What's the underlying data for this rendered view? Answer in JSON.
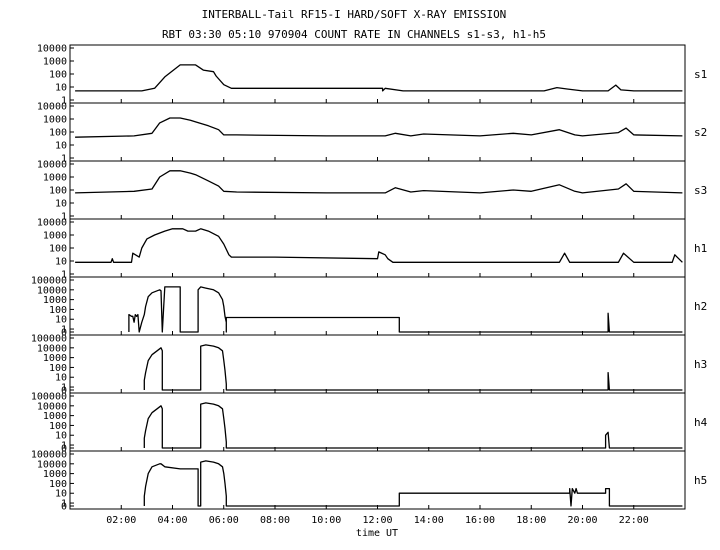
{
  "chart_data": {
    "type": "line",
    "title": "INTERBALL-Tail RF15-I HARD/SOFT X-RAY EMISSION",
    "subtitle": "RBT 03:30 05:10 970904  COUNT RATE IN CHANNELS s1-s3, h1-h5",
    "xlabel": "time UT",
    "x_range_hours": [
      0.0,
      24.0
    ],
    "x_ticks": [
      "02:00",
      "04:00",
      "06:00",
      "08:00",
      "10:00",
      "12:00",
      "14:00",
      "16:00",
      "18:00",
      "20:00",
      "22:00"
    ],
    "y_scale": "log",
    "grid": false,
    "panels": [
      {
        "name": "s1",
        "y_ticks": [
          "10000",
          "1000",
          "100",
          "10",
          "1"
        ],
        "ylim": [
          1,
          10000
        ],
        "x": [
          0.2,
          2.0,
          2.8,
          3.3,
          3.7,
          4.3,
          4.6,
          4.9,
          5.2,
          5.6,
          5.7,
          6.0,
          6.3,
          8.0,
          12.2,
          12.2,
          12.3,
          13.0,
          16.0,
          18.5,
          19.0,
          19.4,
          20.0,
          21.0,
          21.3,
          21.5,
          22.0,
          23.9
        ],
        "y": [
          5,
          5,
          5,
          8,
          60,
          500,
          500,
          500,
          200,
          150,
          70,
          15,
          8,
          8,
          8,
          5,
          8,
          5,
          5,
          5,
          9,
          7,
          5,
          5,
          14,
          6,
          5,
          5
        ]
      },
      {
        "name": "s2",
        "y_ticks": [
          "10000",
          "1000",
          "100",
          "10",
          "1"
        ],
        "ylim": [
          1,
          10000
        ],
        "x": [
          0.2,
          2.5,
          3.2,
          3.5,
          3.9,
          4.3,
          4.7,
          4.9,
          5.4,
          5.8,
          6.0,
          6.5,
          10.0,
          12.3,
          12.7,
          13.3,
          13.8,
          16.0,
          17.3,
          18.0,
          19.1,
          19.7,
          20.0,
          21.4,
          21.7,
          22.0,
          23.9
        ],
        "y": [
          40,
          50,
          80,
          500,
          1200,
          1200,
          800,
          600,
          300,
          150,
          60,
          60,
          50,
          50,
          80,
          50,
          70,
          50,
          80,
          60,
          150,
          60,
          50,
          90,
          200,
          60,
          50
        ]
      },
      {
        "name": "s3",
        "y_ticks": [
          "10000",
          "1000",
          "100",
          "10",
          "1"
        ],
        "ylim": [
          1,
          10000
        ],
        "x": [
          0.2,
          2.5,
          3.2,
          3.5,
          3.9,
          4.3,
          4.7,
          4.9,
          5.4,
          5.8,
          6.0,
          6.5,
          10.0,
          12.3,
          12.7,
          13.3,
          13.8,
          16.0,
          17.3,
          18.0,
          19.1,
          19.7,
          20.0,
          21.4,
          21.7,
          22.0,
          23.9
        ],
        "y": [
          60,
          80,
          120,
          1000,
          3000,
          3000,
          2000,
          1500,
          500,
          200,
          80,
          70,
          60,
          60,
          150,
          70,
          90,
          60,
          100,
          80,
          250,
          80,
          60,
          120,
          300,
          80,
          60
        ]
      },
      {
        "name": "h1",
        "y_ticks": [
          "10000",
          "1000",
          "100",
          "10",
          "1"
        ],
        "ylim": [
          1,
          10000
        ],
        "x": [
          0.2,
          1.6,
          1.65,
          1.7,
          1.8,
          2.0,
          2.2,
          2.4,
          2.45,
          2.7,
          2.8,
          3.0,
          3.3,
          3.7,
          4.0,
          4.4,
          4.6,
          4.9,
          5.1,
          5.4,
          5.8,
          6.0,
          6.2,
          6.3,
          8.0,
          12.0,
          12.05,
          12.3,
          12.4,
          12.6,
          12.8,
          14.0,
          19.1,
          19.3,
          19.5,
          21.0,
          21.4,
          21.6,
          22.0,
          23.4,
          23.5,
          23.6,
          23.9
        ],
        "y": [
          8,
          8,
          15,
          8,
          8,
          8,
          8,
          8,
          40,
          20,
          100,
          500,
          1000,
          2000,
          3000,
          3000,
          2000,
          2000,
          3000,
          2000,
          800,
          200,
          30,
          20,
          20,
          15,
          50,
          30,
          15,
          8,
          8,
          8,
          8,
          40,
          8,
          8,
          8,
          40,
          8,
          8,
          8,
          30,
          8
        ]
      },
      {
        "name": "h2",
        "y_ticks": [
          "100000",
          "10000",
          "1000",
          "100",
          "10",
          "1",
          "0"
        ],
        "ylim": [
          0.5,
          100000
        ],
        "x": [
          2.3,
          2.3,
          2.4,
          2.45,
          2.5,
          2.55,
          2.6,
          2.65,
          2.7,
          2.8,
          2.9,
          2.95,
          3.05,
          3.2,
          3.4,
          3.5,
          3.55,
          3.6,
          3.6,
          3.7,
          4.2,
          4.3,
          4.3,
          4.3,
          5.0,
          5.0,
          5.1,
          5.3,
          5.6,
          5.8,
          5.95,
          6.0,
          6.05,
          6.1,
          6.1,
          6.1,
          12.85,
          12.85,
          12.85,
          21.0,
          21.0,
          21.05,
          23.9
        ],
        "y": [
          0.5,
          30,
          20,
          20,
          5,
          30,
          20,
          30,
          0.5,
          5,
          30,
          200,
          2000,
          5000,
          8000,
          10000,
          8000,
          0.5,
          0.5,
          20000,
          20000,
          20000,
          20000,
          0.5,
          0.5,
          10000,
          20000,
          15000,
          10000,
          5000,
          1000,
          200,
          20,
          5,
          0.5,
          15,
          15,
          0.5,
          0.5,
          0.5,
          40,
          0.5,
          0.5
        ]
      },
      {
        "name": "h3",
        "y_ticks": [
          "100000",
          "10000",
          "1000",
          "100",
          "10",
          "1",
          "0"
        ],
        "ylim": [
          0.5,
          100000
        ],
        "x": [
          2.9,
          2.9,
          2.95,
          3.05,
          3.2,
          3.4,
          3.5,
          3.55,
          3.6,
          3.6,
          3.65,
          3.65,
          5.1,
          5.1,
          5.3,
          5.6,
          5.8,
          5.95,
          6.0,
          6.05,
          6.1,
          6.1,
          21.0,
          21.0,
          21.05,
          23.9
        ],
        "y": [
          0.5,
          5,
          30,
          500,
          2000,
          5000,
          8000,
          10000,
          5000,
          0.5,
          0.5,
          0.5,
          0.5,
          15000,
          20000,
          15000,
          10000,
          5000,
          500,
          50,
          2,
          0.5,
          0.5,
          30,
          0.5,
          0.5
        ]
      },
      {
        "name": "h4",
        "y_ticks": [
          "100000",
          "10000",
          "1000",
          "100",
          "10",
          "1",
          "0"
        ],
        "ylim": [
          0.5,
          100000
        ],
        "x": [
          2.9,
          2.9,
          2.95,
          3.05,
          3.2,
          3.4,
          3.5,
          3.55,
          3.6,
          3.6,
          3.65,
          3.65,
          5.1,
          5.1,
          5.3,
          5.6,
          5.8,
          5.95,
          6.0,
          6.05,
          6.1,
          6.1,
          20.9,
          20.9,
          21.0,
          21.05,
          23.9
        ],
        "y": [
          0.5,
          5,
          30,
          500,
          2000,
          5000,
          8000,
          10000,
          5000,
          0.5,
          0.5,
          0.5,
          0.5,
          15000,
          20000,
          15000,
          10000,
          5000,
          500,
          50,
          2,
          0.5,
          0.5,
          10,
          20,
          0.5,
          0.5
        ]
      },
      {
        "name": "h5",
        "y_ticks": [
          "100000",
          "10000",
          "1000",
          "100",
          "10",
          "1",
          "0"
        ],
        "ylim": [
          0.5,
          100000
        ],
        "x": [
          2.9,
          2.9,
          2.95,
          3.05,
          3.2,
          3.4,
          3.5,
          3.55,
          3.6,
          3.7,
          4.3,
          4.35,
          5.0,
          5.0,
          5.1,
          5.1,
          5.3,
          5.6,
          5.8,
          5.95,
          6.0,
          6.05,
          6.1,
          6.1,
          12.85,
          12.85,
          19.5,
          19.5,
          19.55,
          19.6,
          19.7,
          19.75,
          19.8,
          20.3,
          20.9,
          20.9,
          21.05,
          21.05,
          23.9
        ],
        "y": [
          0.5,
          5,
          50,
          1000,
          5000,
          8000,
          10000,
          10000,
          8000,
          5000,
          3000,
          3000,
          3000,
          0.5,
          0.5,
          15000,
          20000,
          15000,
          10000,
          5000,
          1000,
          100,
          5,
          0.5,
          0.5,
          10,
          10,
          30,
          0.5,
          30,
          10,
          30,
          10,
          10,
          10,
          30,
          30,
          0.5,
          0.5
        ]
      }
    ]
  }
}
